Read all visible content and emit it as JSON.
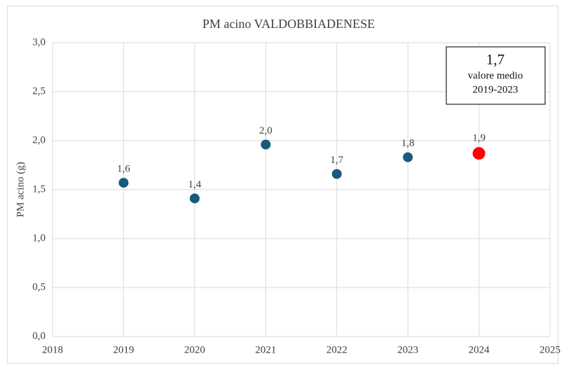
{
  "chart_data": {
    "type": "scatter",
    "title": "PM acino VALDOBBIADENESE",
    "y_label": "PM acino (g)",
    "x": [
      2019,
      2020,
      2021,
      2022,
      2023,
      2024
    ],
    "values": [
      1.57,
      1.41,
      1.96,
      1.66,
      1.83,
      1.87
    ],
    "value_labels": [
      "1,6",
      "1,4",
      "2,0",
      "1,7",
      "1,8",
      "1,9"
    ],
    "colors": [
      "#175a7b",
      "#175a7b",
      "#175a7b",
      "#175a7b",
      "#175a7b",
      "#ff0000"
    ],
    "xlim": [
      2018,
      2025
    ],
    "xticks": [
      2018,
      2019,
      2020,
      2021,
      2022,
      2023,
      2024,
      2025
    ],
    "ylim": [
      0,
      3
    ],
    "yticks": [
      {
        "value": 0,
        "label": "0,0"
      },
      {
        "value": 0.5,
        "label": "0,5"
      },
      {
        "value": 1,
        "label": "1,0"
      },
      {
        "value": 1.5,
        "label": "1,5"
      },
      {
        "value": 2,
        "label": "2,0"
      },
      {
        "value": 2.5,
        "label": "2,5"
      },
      {
        "value": 3,
        "label": "3,0"
      }
    ],
    "grid": true,
    "annotation": {
      "value": "1,7",
      "lines": [
        "valore medio",
        "2019-2023"
      ]
    }
  }
}
